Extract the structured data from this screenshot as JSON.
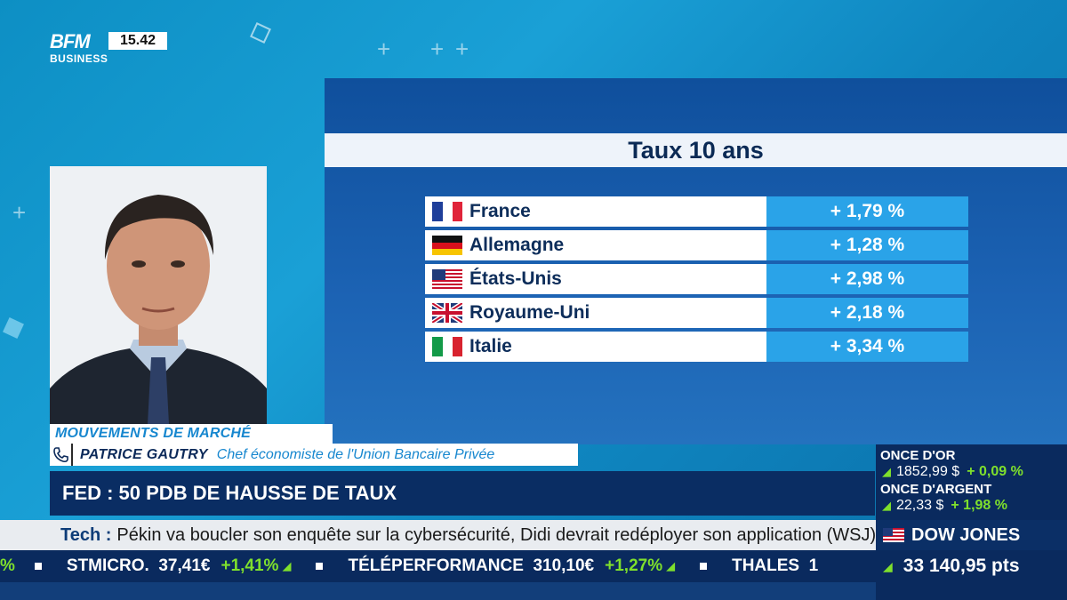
{
  "brand": {
    "logo_top": "BFM",
    "logo_bottom": "BUSINESS",
    "clock": "15.42"
  },
  "panel": {
    "title": "Taux 10 ans",
    "rows": [
      {
        "country": "France",
        "flag": "france-flag-icon",
        "rate": "+ 1,79 %"
      },
      {
        "country": "Allemagne",
        "flag": "germany-flag-icon",
        "rate": "+ 1,28 %"
      },
      {
        "country": "États-Unis",
        "flag": "usa-flag-icon",
        "rate": "+ 2,98 %"
      },
      {
        "country": "Royaume-Uni",
        "flag": "uk-flag-icon",
        "rate": "+ 2,18 %"
      },
      {
        "country": "Italie",
        "flag": "italy-flag-icon",
        "rate": "+ 3,34 %"
      }
    ]
  },
  "lower_third": {
    "show": "MOUVEMENTS DE MARCHÉ",
    "guest_name": "PATRICE GAUTRY",
    "guest_role": "Chef économiste de l'Union Bancaire Privée",
    "headline": "FED : 50 PDB DE HAUSSE DE TAUX"
  },
  "news_bar": {
    "tag": "Tech :",
    "text": "Pékin va boucler son enquête sur la cybersécurité, Didi devrait redéployer son application (WSJ)."
  },
  "ticker": {
    "lead_fragment": "%",
    "items": [
      {
        "name": "STMICRO.",
        "price": "37,41€",
        "change": "+1,41%"
      },
      {
        "name": "TÉLÉPERFORMANCE",
        "price": "310,10€",
        "change": "+1,27%"
      },
      {
        "name": "THALES",
        "price": "1",
        "change": ""
      }
    ]
  },
  "side": {
    "gold_label": "ONCE D'OR",
    "gold_value": "1852,99 $",
    "gold_change": "+ 0,09 %",
    "silver_label": "ONCE D'ARGENT",
    "silver_value": "22,33 $",
    "silver_change": "+ 1,98 %",
    "index_name": "DOW JONES",
    "index_value": "33 140,95 pts"
  },
  "colors": {
    "accent": "#2aa3e8",
    "navy": "#0a2a5e",
    "up": "#7fe02c"
  }
}
